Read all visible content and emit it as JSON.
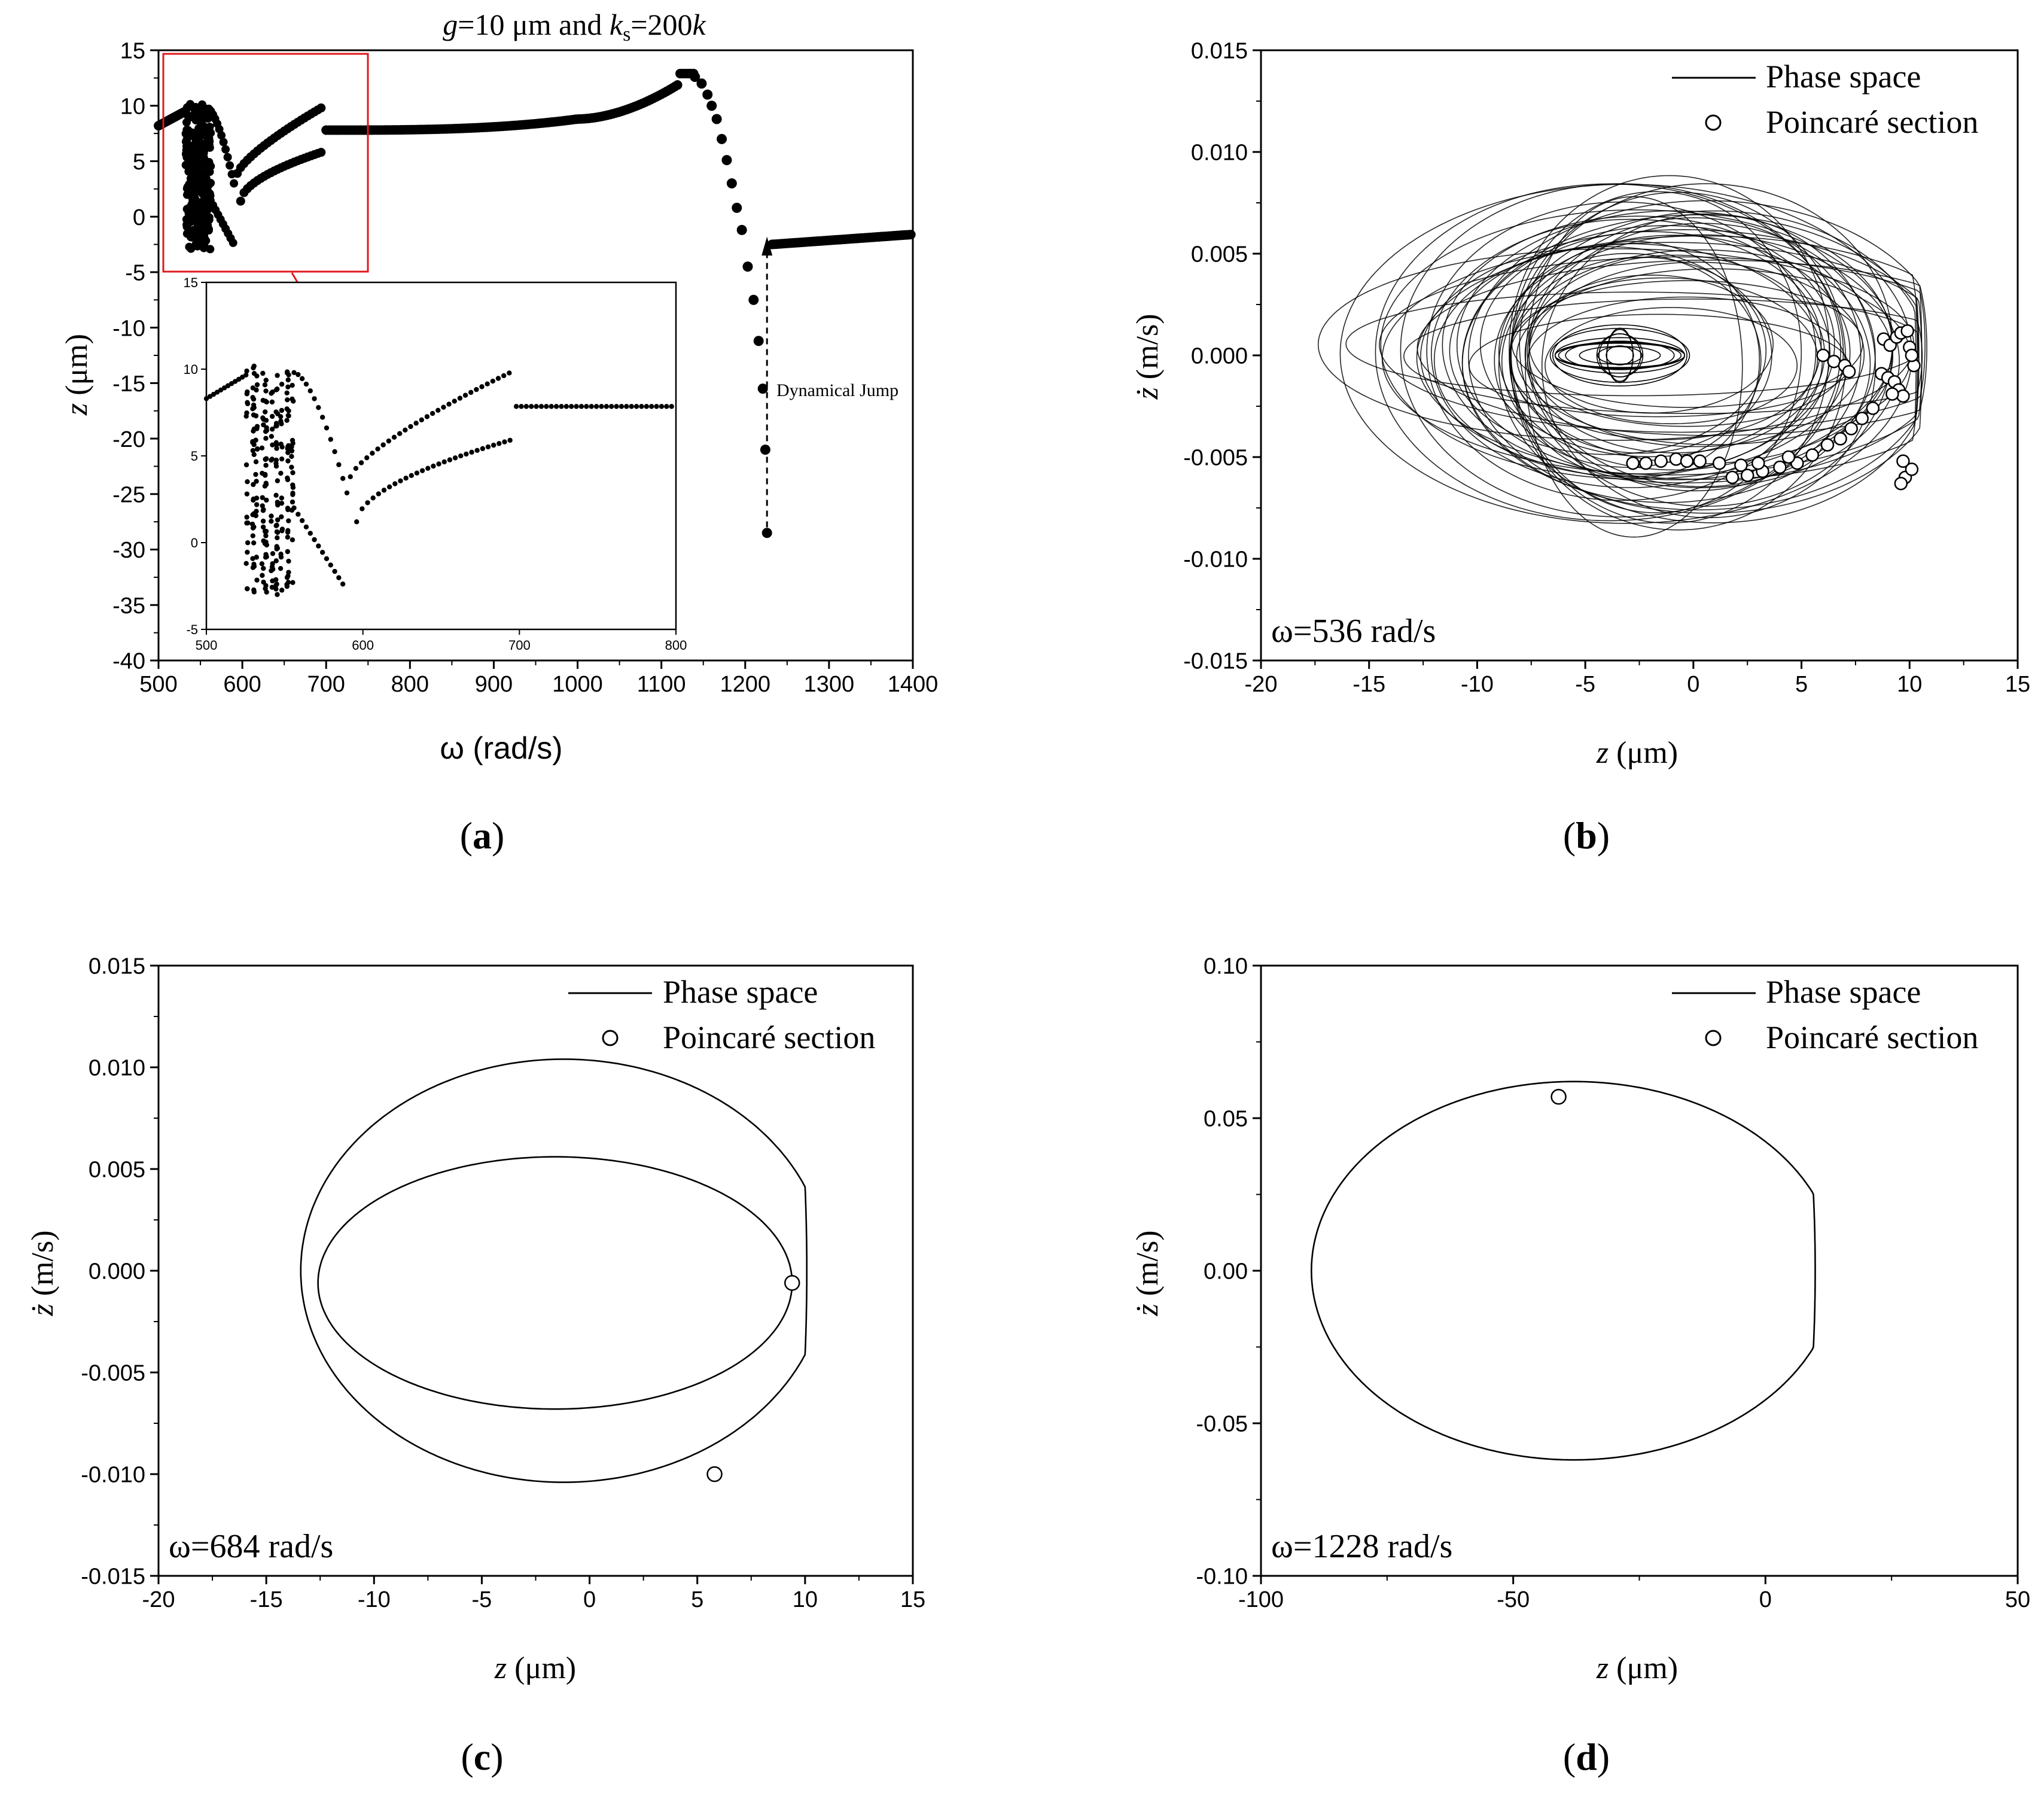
{
  "chart_data": [
    {
      "panel": "a",
      "caption_letter": "a",
      "type": "scatter",
      "title": "g=10 μm and ks=200k",
      "title_parts": {
        "g": "g",
        "g_rest": "=10 μm and ",
        "k": "k",
        "sub": "s",
        "eq": "=200",
        "k2": "k"
      },
      "xlabel": "ω (rad/s)",
      "ylabel_var": "z",
      "ylabel_unit": " (μm)",
      "xlim": [
        500,
        1400
      ],
      "ylim": [
        -40,
        15
      ],
      "xticks": [
        "500",
        "600",
        "700",
        "800",
        "900",
        "1000",
        "1100",
        "1200",
        "1300",
        "1400"
      ],
      "yticks": [
        "15",
        "10",
        "5",
        "0",
        "-5",
        "-10",
        "-15",
        "-20",
        "-25",
        "-30",
        "-35",
        "-40"
      ],
      "annotation": "Dynamical Jump",
      "jump": {
        "x": 1228,
        "y_from": -28.5,
        "y_to": -2.5
      },
      "series_desc": [
        {
          "segment": "pre",
          "x": [
            500,
            530
          ],
          "y": [
            8.2,
            9.5
          ]
        },
        {
          "segment": "chaotic band",
          "x": [
            532,
            562
          ],
          "y": [
            -3,
            10.2
          ]
        },
        {
          "segment": "upper decay",
          "x": [
            560,
            590
          ],
          "y": [
            9.5,
            3.0
          ]
        },
        {
          "segment": "lower tail",
          "x": [
            555,
            590
          ],
          "y": [
            2.0,
            -2.5
          ]
        },
        {
          "segment": "upper branch",
          "x": [
            595,
            694
          ],
          "y": [
            4.0,
            9.8
          ]
        },
        {
          "segment": "lower branch",
          "x": [
            600,
            694
          ],
          "y": [
            1.5,
            5.8
          ]
        },
        {
          "segment": "main branch",
          "x": [
            700,
            1140
          ],
          "y": [
            7.8,
            12.9
          ]
        },
        {
          "segment": "falling branch",
          "x": [
            1140,
            1225
          ],
          "y": [
            12.9,
            -28.5
          ]
        },
        {
          "segment": "after jump",
          "x": [
            1228,
            1400
          ],
          "y": [
            -2.5,
            -1.6
          ]
        }
      ],
      "inset": {
        "xlim": [
          500,
          800
        ],
        "ylim": [
          -5,
          15
        ],
        "xticks": [
          "500",
          "600",
          "700",
          "800"
        ],
        "yticks": [
          "15",
          "10",
          "5",
          "0",
          "-5"
        ]
      }
    },
    {
      "panel": "b",
      "caption_letter": "b",
      "type": "line",
      "xlabel_var": "z",
      "xlabel_unit": " (μm)",
      "ylabel_var": "ż",
      "ylabel_unit": " (m/s)",
      "xlim": [
        -20,
        15
      ],
      "ylim": [
        -0.015,
        0.015
      ],
      "xticks": [
        "-20",
        "-15",
        "-10",
        "-5",
        "0",
        "5",
        "10",
        "15"
      ],
      "yticks": [
        "0.015",
        "0.010",
        "0.005",
        "0.000",
        "-0.005",
        "-0.010",
        "-0.015"
      ],
      "legend": [
        "Phase space",
        "Poincaré section"
      ],
      "legend_position": "top-right",
      "omega_label": "ω=536 rad/s",
      "poincare_points": [
        [
          6.0,
          0.0
        ],
        [
          6.5,
          -0.0003
        ],
        [
          7.0,
          -0.0005
        ],
        [
          7.2,
          -0.0008
        ],
        [
          8.8,
          0.0008
        ],
        [
          9.1,
          0.0005
        ],
        [
          9.4,
          0.0009
        ],
        [
          9.6,
          0.0011
        ],
        [
          9.9,
          0.0012
        ],
        [
          10.0,
          0.0004
        ],
        [
          10.2,
          -0.0005
        ],
        [
          10.1,
          0.0
        ],
        [
          8.7,
          -0.0009
        ],
        [
          9.0,
          -0.0011
        ],
        [
          9.3,
          -0.0013
        ],
        [
          9.5,
          -0.0017
        ],
        [
          9.7,
          -0.002
        ],
        [
          9.2,
          -0.0019
        ],
        [
          8.3,
          -0.0026
        ],
        [
          7.8,
          -0.0031
        ],
        [
          7.3,
          -0.0036
        ],
        [
          6.8,
          -0.0041
        ],
        [
          6.2,
          -0.0044
        ],
        [
          5.5,
          -0.0049
        ],
        [
          4.8,
          -0.0053
        ],
        [
          4.0,
          -0.0055
        ],
        [
          3.2,
          -0.0057
        ],
        [
          2.5,
          -0.0059
        ],
        [
          1.8,
          -0.006
        ],
        [
          2.2,
          -0.0054
        ],
        [
          1.2,
          -0.0053
        ],
        [
          0.3,
          -0.0052
        ],
        [
          -0.8,
          -0.0051
        ],
        [
          -1.5,
          -0.0052
        ],
        [
          -2.2,
          -0.0053
        ],
        [
          -2.8,
          -0.0053
        ],
        [
          -0.3,
          -0.0052
        ],
        [
          3.0,
          -0.0053
        ],
        [
          4.4,
          -0.005
        ],
        [
          9.7,
          -0.0052
        ],
        [
          9.8,
          -0.006
        ],
        [
          9.6,
          -0.0063
        ],
        [
          10.1,
          -0.0056
        ]
      ]
    },
    {
      "panel": "c",
      "caption_letter": "c",
      "type": "line",
      "xlabel_var": "z",
      "xlabel_unit": " (μm)",
      "ylabel_var": "ż",
      "ylabel_unit": " (m/s)",
      "xlim": [
        -20,
        15
      ],
      "ylim": [
        -0.015,
        0.015
      ],
      "xticks": [
        "-20",
        "-15",
        "-10",
        "-5",
        "0",
        "5",
        "10",
        "15"
      ],
      "yticks": [
        "0.015",
        "0.010",
        "0.005",
        "0.000",
        "-0.005",
        "-0.010",
        "-0.015"
      ],
      "legend": [
        "Phase space",
        "Poincaré section"
      ],
      "legend_position": "top-right",
      "omega_label": "ω=684 rad/s",
      "poincare_points": [
        [
          9.4,
          -0.0006
        ],
        [
          5.8,
          -0.01
        ]
      ]
    },
    {
      "panel": "d",
      "caption_letter": "d",
      "type": "line",
      "xlabel_var": "z",
      "xlabel_unit": " (μm)",
      "ylabel_var": "ż",
      "ylabel_unit": " (m/s)",
      "xlim": [
        -100,
        50
      ],
      "ylim": [
        -0.1,
        0.1
      ],
      "xticks": [
        "-100",
        "-50",
        "0",
        "50"
      ],
      "yticks": [
        "0.10",
        "0.05",
        "0.00",
        "-0.05",
        "-0.10"
      ],
      "legend": [
        "Phase space",
        "Poincaré section"
      ],
      "legend_position": "top-right",
      "omega_label": "ω=1228 rad/s",
      "poincare_points": [
        [
          -41,
          0.057
        ]
      ]
    }
  ],
  "colors": {
    "axes": "#000000",
    "zoom_box": "#e0191c",
    "points": "#000000",
    "poincare_fill": "#ffffff"
  }
}
